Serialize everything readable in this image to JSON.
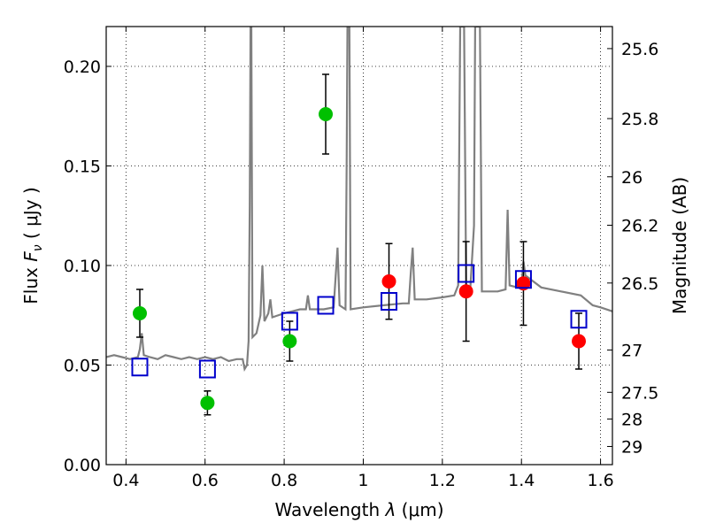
{
  "chart_data": {
    "type": "scatter",
    "title": "",
    "xlabel_prefix": "Wavelength  ",
    "xlabel_lambda": "λ",
    "xlabel_suffix": " (μm)",
    "ylabel_prefix": "Flux  ",
    "ylabel_symbol": "F",
    "ylabel_subscript": "ν",
    "ylabel_suffix": "  ( μJy )",
    "y2label": "Magnitude (AB)",
    "xlim": [
      0.35,
      1.63
    ],
    "ylim": [
      0.0,
      0.22
    ],
    "grid": true,
    "x_ticks": [
      {
        "value": 0.4,
        "label": "0.4"
      },
      {
        "value": 0.6,
        "label": "0.6"
      },
      {
        "value": 0.8,
        "label": "0.8"
      },
      {
        "value": 1.0,
        "label": "1"
      },
      {
        "value": 1.2,
        "label": "1.2"
      },
      {
        "value": 1.4,
        "label": "1.4"
      },
      {
        "value": 1.6,
        "label": "1.6"
      }
    ],
    "y_ticks": [
      {
        "value": 0.0,
        "label": "0.00"
      },
      {
        "value": 0.05,
        "label": "0.05"
      },
      {
        "value": 0.1,
        "label": "0.10"
      },
      {
        "value": 0.15,
        "label": "0.15"
      },
      {
        "value": 0.2,
        "label": "0.20"
      }
    ],
    "y2_ticks": [
      {
        "value": 25.6,
        "label": "25.6"
      },
      {
        "value": 25.8,
        "label": "25.8"
      },
      {
        "value": 26.0,
        "label": "26"
      },
      {
        "value": 26.2,
        "label": "26.2"
      },
      {
        "value": 26.5,
        "label": "26.5"
      },
      {
        "value": 27.0,
        "label": "27"
      },
      {
        "value": 27.5,
        "label": "27.5"
      },
      {
        "value": 28.0,
        "label": "28"
      },
      {
        "value": 29.0,
        "label": "29"
      }
    ],
    "series": [
      {
        "marker": "circle",
        "color": "#00c000",
        "points": [
          {
            "x": 0.435,
            "y": 0.076,
            "err": 0.012
          },
          {
            "x": 0.606,
            "y": 0.031,
            "err": 0.006
          },
          {
            "x": 0.814,
            "y": 0.062,
            "err": 0.01
          },
          {
            "x": 0.905,
            "y": 0.176,
            "err": 0.02
          }
        ]
      },
      {
        "marker": "circle",
        "color": "#ff0000",
        "points": [
          {
            "x": 1.065,
            "y": 0.092,
            "err": 0.019
          },
          {
            "x": 1.26,
            "y": 0.087,
            "err": 0.025
          },
          {
            "x": 1.405,
            "y": 0.091,
            "err": 0.021
          },
          {
            "x": 1.545,
            "y": 0.062,
            "err": 0.014
          }
        ]
      },
      {
        "marker": "square-open",
        "color": "#0000cc",
        "points": [
          {
            "x": 0.435,
            "y": 0.049
          },
          {
            "x": 0.606,
            "y": 0.048
          },
          {
            "x": 0.814,
            "y": 0.072
          },
          {
            "x": 0.905,
            "y": 0.08
          },
          {
            "x": 1.065,
            "y": 0.082
          },
          {
            "x": 1.26,
            "y": 0.096
          },
          {
            "x": 1.405,
            "y": 0.093
          },
          {
            "x": 1.545,
            "y": 0.073
          }
        ]
      }
    ],
    "spectrum": {
      "color": "#808080",
      "points": [
        [
          0.35,
          0.054
        ],
        [
          0.37,
          0.055
        ],
        [
          0.39,
          0.054
        ],
        [
          0.41,
          0.053
        ],
        [
          0.43,
          0.054
        ],
        [
          0.435,
          0.058
        ],
        [
          0.44,
          0.066
        ],
        [
          0.445,
          0.055
        ],
        [
          0.46,
          0.054
        ],
        [
          0.48,
          0.053
        ],
        [
          0.5,
          0.055
        ],
        [
          0.52,
          0.054
        ],
        [
          0.54,
          0.053
        ],
        [
          0.56,
          0.054
        ],
        [
          0.58,
          0.053
        ],
        [
          0.6,
          0.054
        ],
        [
          0.62,
          0.053
        ],
        [
          0.64,
          0.054
        ],
        [
          0.66,
          0.052
        ],
        [
          0.68,
          0.053
        ],
        [
          0.695,
          0.053
        ],
        [
          0.7,
          0.048
        ],
        [
          0.706,
          0.05
        ],
        [
          0.71,
          0.062
        ],
        [
          0.713,
          0.13
        ],
        [
          0.715,
          0.22
        ],
        [
          0.717,
          0.22
        ],
        [
          0.72,
          0.064
        ],
        [
          0.73,
          0.066
        ],
        [
          0.74,
          0.075
        ],
        [
          0.745,
          0.1
        ],
        [
          0.75,
          0.072
        ],
        [
          0.76,
          0.076
        ],
        [
          0.765,
          0.083
        ],
        [
          0.77,
          0.074
        ],
        [
          0.8,
          0.076
        ],
        [
          0.82,
          0.077
        ],
        [
          0.84,
          0.078
        ],
        [
          0.855,
          0.078
        ],
        [
          0.86,
          0.085
        ],
        [
          0.865,
          0.078
        ],
        [
          0.9,
          0.078
        ],
        [
          0.925,
          0.079
        ],
        [
          0.93,
          0.094
        ],
        [
          0.935,
          0.109
        ],
        [
          0.94,
          0.08
        ],
        [
          0.955,
          0.078
        ],
        [
          0.958,
          0.15
        ],
        [
          0.96,
          0.22
        ],
        [
          0.965,
          0.22
        ],
        [
          0.968,
          0.078
        ],
        [
          1.0,
          0.079
        ],
        [
          1.05,
          0.08
        ],
        [
          1.1,
          0.081
        ],
        [
          1.115,
          0.081
        ],
        [
          1.12,
          0.096
        ],
        [
          1.125,
          0.109
        ],
        [
          1.13,
          0.083
        ],
        [
          1.16,
          0.083
        ],
        [
          1.2,
          0.084
        ],
        [
          1.23,
          0.085
        ],
        [
          1.24,
          0.09
        ],
        [
          1.245,
          0.22
        ],
        [
          1.255,
          0.22
        ],
        [
          1.26,
          0.09
        ],
        [
          1.27,
          0.086
        ],
        [
          1.28,
          0.12
        ],
        [
          1.283,
          0.22
        ],
        [
          1.29,
          0.22
        ],
        [
          1.295,
          0.22
        ],
        [
          1.3,
          0.087
        ],
        [
          1.34,
          0.087
        ],
        [
          1.36,
          0.088
        ],
        [
          1.365,
          0.128
        ],
        [
          1.37,
          0.09
        ],
        [
          1.39,
          0.089
        ],
        [
          1.4,
          0.09
        ],
        [
          1.405,
          0.102
        ],
        [
          1.41,
          0.095
        ],
        [
          1.45,
          0.089
        ],
        [
          1.5,
          0.087
        ],
        [
          1.55,
          0.085
        ],
        [
          1.58,
          0.08
        ],
        [
          1.6,
          0.079
        ],
        [
          1.63,
          0.077
        ]
      ]
    }
  }
}
